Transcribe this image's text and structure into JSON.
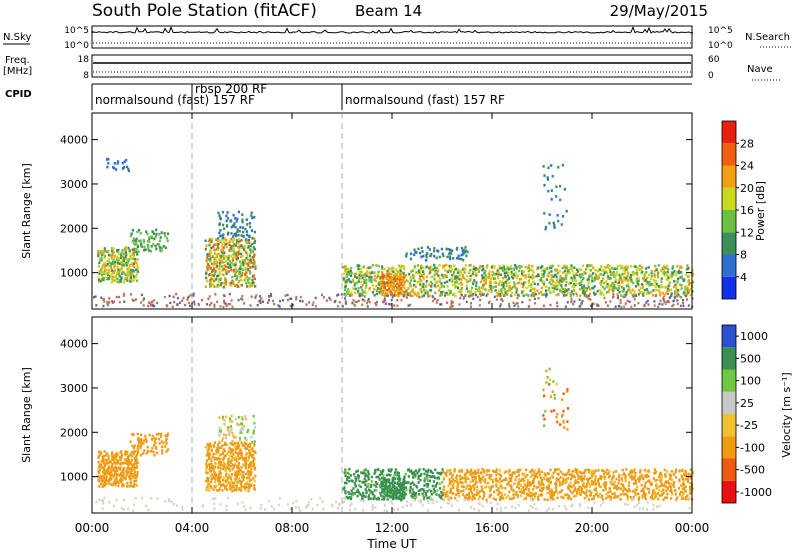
{
  "header": {
    "station": "South Pole Station (fitACF)",
    "beam": "Beam 14",
    "date": "29/May/2015"
  },
  "strip_panels": {
    "nsky": {
      "label": "N.Sky",
      "right_label": "N.Search",
      "ticks_left": [
        "10^5",
        "10^0"
      ],
      "ticks_right": [
        "10^5",
        "10^0"
      ]
    },
    "freq": {
      "label_line1": "Freq.",
      "label_line2": "[MHz]",
      "right_label": "Nave",
      "ticks_left": [
        "18",
        "8"
      ],
      "ticks_right": [
        "60",
        "0"
      ]
    },
    "cpid": {
      "label": "CPID",
      "segments": [
        {
          "start_h": 0,
          "end_h": 4,
          "text": "normalsound (fast) 157 RF"
        },
        {
          "start_h": 4,
          "end_h": 10,
          "text": "rbsp 200 RF"
        },
        {
          "start_h": 10,
          "end_h": 24,
          "text": "normalsound (fast) 157 RF"
        }
      ]
    }
  },
  "colors": {
    "power": [
      "#1230e8",
      "#2e6fd0",
      "#3b8f5a",
      "#6cc044",
      "#c8d81a",
      "#f0a010",
      "#f06010",
      "#e82010"
    ],
    "velocity": [
      "#e81010",
      "#f05a10",
      "#f09a10",
      "#f0c030",
      "#c8c8c8",
      "#70c840",
      "#3a9050",
      "#2a50d0"
    ],
    "ground": [
      "#c06060",
      "#606098",
      "#b08050"
    ]
  },
  "chart_data": [
    {
      "type": "heatmap",
      "name": "power",
      "ylabel": "Slant Range [km]",
      "xlabel": "",
      "yticks": [
        "1000",
        "2000",
        "3000",
        "4000"
      ],
      "ylim": [
        180,
        4600
      ],
      "xlim": [
        0,
        24
      ],
      "colorbar": {
        "label": "Power [dB]",
        "ticks": [
          "4",
          "8",
          "12",
          "16",
          "20",
          "24",
          "28"
        ],
        "range": [
          0,
          32
        ]
      },
      "regions": [
        {
          "t0": 0.2,
          "t1": 1.8,
          "r0": 800,
          "r1": 1600,
          "values": [
            8,
            24
          ],
          "density": 0.8
        },
        {
          "t0": 1.5,
          "t1": 3.0,
          "r0": 1500,
          "r1": 2000,
          "values": [
            8,
            16
          ],
          "density": 0.4
        },
        {
          "t0": 4.5,
          "t1": 6.5,
          "r0": 700,
          "r1": 1800,
          "values": [
            8,
            28
          ],
          "density": 0.75
        },
        {
          "t0": 5.0,
          "t1": 6.5,
          "r0": 1800,
          "r1": 2400,
          "values": [
            4,
            12
          ],
          "density": 0.35
        },
        {
          "t0": 10.0,
          "t1": 14.0,
          "r0": 500,
          "r1": 1200,
          "values": [
            8,
            24
          ],
          "density": 0.5
        },
        {
          "t0": 11.5,
          "t1": 12.5,
          "r0": 500,
          "r1": 1000,
          "values": [
            20,
            28
          ],
          "density": 0.9
        },
        {
          "t0": 12.5,
          "t1": 15.0,
          "r0": 1300,
          "r1": 1600,
          "values": [
            4,
            12
          ],
          "density": 0.3
        },
        {
          "t0": 14.0,
          "t1": 24.0,
          "r0": 500,
          "r1": 1200,
          "values": [
            8,
            24
          ],
          "density": 0.55
        },
        {
          "t0": 18.0,
          "t1": 19.0,
          "r0": 2000,
          "r1": 3500,
          "values": [
            4,
            12
          ],
          "density": 0.1
        },
        {
          "t0": 0.5,
          "t1": 1.5,
          "r0": 3300,
          "r1": 3600,
          "values": [
            4,
            8
          ],
          "density": 0.2
        }
      ]
    },
    {
      "type": "heatmap",
      "name": "velocity",
      "ylabel": "Slant Range [km]",
      "xlabel": "Time UT",
      "yticks": [
        "1000",
        "2000",
        "3000",
        "4000"
      ],
      "xticks": [
        "00:00",
        "04:00",
        "08:00",
        "12:00",
        "16:00",
        "20:00",
        "00:00"
      ],
      "ylim": [
        180,
        4600
      ],
      "xlim": [
        0,
        24
      ],
      "colorbar": {
        "label": "Velocity [m s⁻¹]",
        "ticks": [
          "-1000",
          "-500",
          "-100",
          "-25",
          "25",
          "100",
          "500",
          "1000"
        ]
      },
      "regions": [
        {
          "t0": 0.2,
          "t1": 1.8,
          "r0": 800,
          "r1": 1600,
          "values": [
            -500,
            -100
          ],
          "density": 0.8
        },
        {
          "t0": 1.5,
          "t1": 3.0,
          "r0": 1500,
          "r1": 2000,
          "values": [
            -500,
            -100
          ],
          "density": 0.4
        },
        {
          "t0": 4.5,
          "t1": 6.5,
          "r0": 700,
          "r1": 1800,
          "values": [
            -500,
            -25
          ],
          "density": 0.75
        },
        {
          "t0": 5.0,
          "t1": 6.5,
          "r0": 1800,
          "r1": 2400,
          "values": [
            -100,
            100
          ],
          "density": 0.35
        },
        {
          "t0": 10.0,
          "t1": 14.0,
          "r0": 500,
          "r1": 1200,
          "values": [
            25,
            500
          ],
          "density": 0.5
        },
        {
          "t0": 11.5,
          "t1": 12.5,
          "r0": 500,
          "r1": 1000,
          "values": [
            100,
            500
          ],
          "density": 0.9
        },
        {
          "t0": 14.0,
          "t1": 24.0,
          "r0": 500,
          "r1": 1200,
          "values": [
            -500,
            -25
          ],
          "density": 0.55
        },
        {
          "t0": 18.0,
          "t1": 19.0,
          "r0": 2000,
          "r1": 3500,
          "values": [
            -1000,
            100
          ],
          "density": 0.1
        }
      ]
    }
  ]
}
